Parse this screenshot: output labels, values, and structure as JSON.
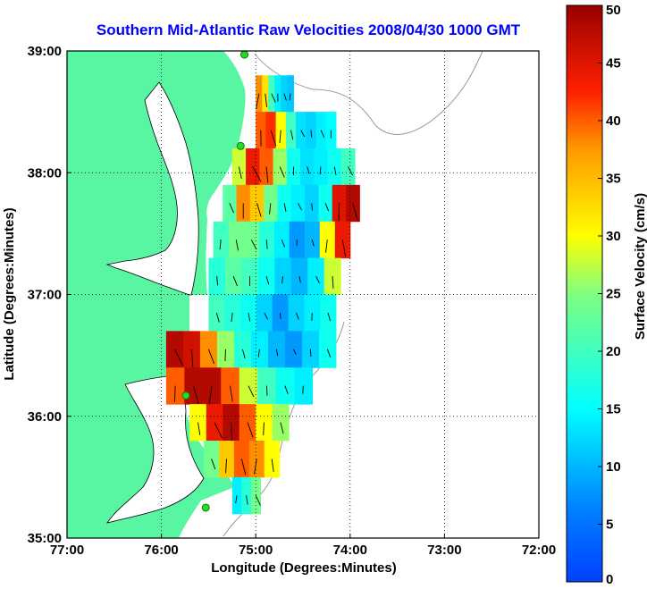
{
  "chart_data": {
    "type": "heatmap",
    "title": "Southern Mid-Atlantic Raw Velocities 2008/04/30 1000 GMT",
    "xlabel": "Longitude (Degrees:Minutes)",
    "ylabel": "Latitude (Degrees:Minutes)",
    "x_ticks": [
      {
        "value": -77,
        "label": "77:00"
      },
      {
        "value": -76,
        "label": "76:00"
      },
      {
        "value": -75,
        "label": "75:00"
      },
      {
        "value": -74,
        "label": "74:00"
      },
      {
        "value": -73,
        "label": "73:00"
      },
      {
        "value": -72,
        "label": "72:00"
      }
    ],
    "y_ticks": [
      {
        "value": 39,
        "label": "39:00"
      },
      {
        "value": 38,
        "label": "38:00"
      },
      {
        "value": 37,
        "label": "37:00"
      },
      {
        "value": 36,
        "label": "36:00"
      },
      {
        "value": 35,
        "label": "35:00"
      }
    ],
    "xlim": [
      -77,
      -72
    ],
    "ylim": [
      35,
      39
    ],
    "grid": true,
    "colorbar": {
      "label": "Surface Velocity (cm/s)",
      "range": [
        0,
        50
      ],
      "ticks": [
        {
          "value": 50,
          "label": "50"
        },
        {
          "value": 45,
          "label": "45"
        },
        {
          "value": 40,
          "label": "40"
        },
        {
          "value": 35,
          "label": "35"
        },
        {
          "value": 30,
          "label": "30"
        },
        {
          "value": 25,
          "label": "25"
        },
        {
          "value": 20,
          "label": "20"
        },
        {
          "value": 15,
          "label": "15"
        },
        {
          "value": 10,
          "label": "10"
        },
        {
          "value": 5,
          "label": "5"
        },
        {
          "value": 0,
          "label": "0"
        }
      ]
    },
    "stations": [
      {
        "lon": -75.12,
        "lat": 38.97
      },
      {
        "lon": -75.16,
        "lat": 38.22
      },
      {
        "lon": -75.74,
        "lat": 36.17
      },
      {
        "lon": -75.53,
        "lat": 35.25
      }
    ],
    "velocity_field": [
      {
        "lat": 38.65,
        "west": -75.0,
        "east": -74.6,
        "speeds": [
          38,
          32,
          20,
          14,
          12,
          11
        ]
      },
      {
        "lat": 38.35,
        "west": -75.0,
        "east": -74.15,
        "speeds": [
          40,
          42,
          30,
          20,
          13,
          12,
          14,
          15
        ]
      },
      {
        "lat": 38.05,
        "west": -75.25,
        "east": -73.95,
        "speeds": [
          28,
          44,
          40,
          26,
          16,
          13,
          14,
          16,
          20
        ]
      },
      {
        "lat": 37.75,
        "west": -75.35,
        "east": -73.9,
        "speeds": [
          22,
          38,
          34,
          24,
          16,
          14,
          12,
          16,
          45,
          48
        ]
      },
      {
        "lat": 37.45,
        "west": -75.45,
        "east": -74.0,
        "speeds": [
          20,
          24,
          24,
          18,
          14,
          8,
          10,
          30,
          44
        ]
      },
      {
        "lat": 37.15,
        "west": -75.5,
        "east": -74.1,
        "speeds": [
          18,
          22,
          20,
          16,
          12,
          10,
          14,
          28
        ]
      },
      {
        "lat": 36.85,
        "west": -75.5,
        "east": -74.15,
        "speeds": [
          20,
          18,
          16,
          12,
          8,
          12,
          14,
          16
        ]
      },
      {
        "lat": 36.55,
        "west": -75.95,
        "east": -74.15,
        "speeds": [
          48,
          46,
          38,
          26,
          18,
          14,
          10,
          8,
          12,
          16
        ]
      },
      {
        "lat": 36.25,
        "west": -75.95,
        "east": -74.4,
        "speeds": [
          40,
          48,
          48,
          40,
          28,
          20,
          16,
          14
        ]
      },
      {
        "lat": 35.95,
        "west": -75.7,
        "east": -74.65,
        "speeds": [
          30,
          44,
          48,
          40,
          30,
          26
        ]
      },
      {
        "lat": 35.65,
        "west": -75.55,
        "east": -74.75,
        "speeds": [
          24,
          34,
          40,
          38,
          30
        ]
      },
      {
        "lat": 35.35,
        "west": -75.25,
        "east": -74.95,
        "speeds": [
          14,
          18,
          24
        ]
      }
    ]
  }
}
